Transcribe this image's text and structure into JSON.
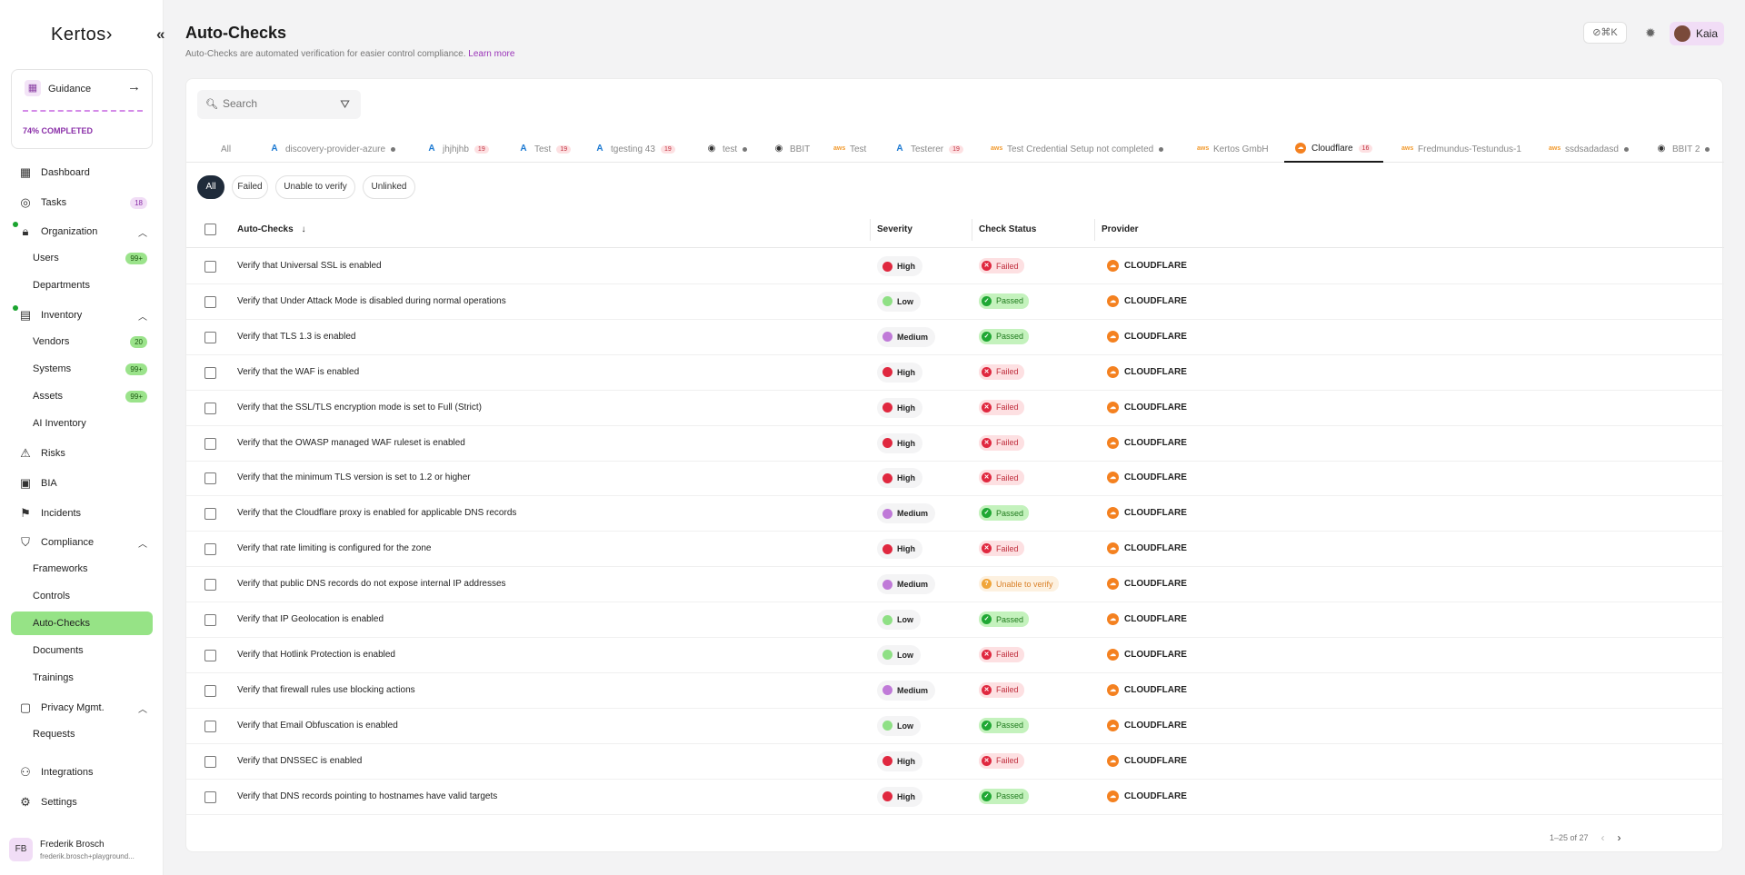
{
  "app": {
    "logo": "Kertos›",
    "collapse_icon": "«"
  },
  "guidance": {
    "title": "Guidance",
    "completed": "74% COMPLETED",
    "progress": 0.74
  },
  "nav": {
    "dashboard": "Dashboard",
    "tasks": "Tasks",
    "tasks_badge": "18",
    "organization": "Organization",
    "users": "Users",
    "users_badge": "99+",
    "departments": "Departments",
    "inventory": "Inventory",
    "vendors": "Vendors",
    "vendors_badge": "20",
    "systems": "Systems",
    "systems_badge": "99+",
    "assets": "Assets",
    "assets_badge": "99+",
    "ai_inventory": "AI Inventory",
    "risks": "Risks",
    "bia": "BIA",
    "incidents": "Incidents",
    "compliance": "Compliance",
    "frameworks": "Frameworks",
    "controls": "Controls",
    "auto_checks": "Auto-Checks",
    "documents": "Documents",
    "trainings": "Trainings",
    "privacy": "Privacy Mgmt.",
    "requests": "Requests",
    "integrations": "Integrations",
    "settings": "Settings"
  },
  "user": {
    "initials": "FB",
    "name": "Frederik Brosch",
    "email": "frederik.brosch+playground..."
  },
  "header": {
    "title": "Auto-Checks",
    "subtitle": "Auto-Checks are automated verification for easier control compliance.",
    "learn_more": "Learn more",
    "kbd": "⊘⌘K",
    "chip_name": "Kaia"
  },
  "search": {
    "placeholder": "Search"
  },
  "tabs": [
    {
      "label": "All"
    },
    {
      "label": "discovery-provider-azure"
    },
    {
      "label": "jhjhjhb",
      "badge": "19"
    },
    {
      "label": "Test",
      "badge": "19"
    },
    {
      "label": "tgesting 43",
      "badge": "19"
    },
    {
      "label": "test"
    },
    {
      "label": "BBIT"
    },
    {
      "label": "Test"
    },
    {
      "label": "Testerer",
      "badge": "19"
    },
    {
      "label": "Test Credential Setup not completed"
    },
    {
      "label": "Kertos GmbH"
    },
    {
      "label": "Cloudflare",
      "badge": "16"
    },
    {
      "label": "Fredmundus-Testundus-1"
    },
    {
      "label": "ssdsadadasd"
    },
    {
      "label": "BBIT 2"
    }
  ],
  "filters": [
    "All",
    "Failed",
    "Unable to verify",
    "Unlinked"
  ],
  "table": {
    "headers": {
      "check": "Auto-Checks",
      "severity": "Severity",
      "status": "Check Status",
      "provider": "Provider"
    },
    "rows": [
      {
        "name": "Verify that Universal SSL is enabled",
        "severity": "High",
        "status": "Failed",
        "provider": "CLOUDFLARE"
      },
      {
        "name": "Verify that Under Attack Mode is disabled during normal operations",
        "severity": "Low",
        "status": "Passed",
        "provider": "CLOUDFLARE"
      },
      {
        "name": "Verify that TLS 1.3 is enabled",
        "severity": "Medium",
        "status": "Passed",
        "provider": "CLOUDFLARE"
      },
      {
        "name": "Verify that the WAF is enabled",
        "severity": "High",
        "status": "Failed",
        "provider": "CLOUDFLARE"
      },
      {
        "name": "Verify that the SSL/TLS encryption mode is set to Full (Strict)",
        "severity": "High",
        "status": "Failed",
        "provider": "CLOUDFLARE"
      },
      {
        "name": "Verify that the OWASP managed WAF ruleset is enabled",
        "severity": "High",
        "status": "Failed",
        "provider": "CLOUDFLARE"
      },
      {
        "name": "Verify that the minimum TLS version is set to 1.2 or higher",
        "severity": "High",
        "status": "Failed",
        "provider": "CLOUDFLARE"
      },
      {
        "name": "Verify that the Cloudflare proxy is enabled for applicable DNS records",
        "severity": "Medium",
        "status": "Passed",
        "provider": "CLOUDFLARE"
      },
      {
        "name": "Verify that rate limiting is configured for the zone",
        "severity": "High",
        "status": "Failed",
        "provider": "CLOUDFLARE"
      },
      {
        "name": "Verify that public DNS records do not expose internal IP addresses",
        "severity": "Medium",
        "status": "Unable to verify",
        "provider": "CLOUDFLARE"
      },
      {
        "name": "Verify that IP Geolocation is enabled",
        "severity": "Low",
        "status": "Passed",
        "provider": "CLOUDFLARE"
      },
      {
        "name": "Verify that Hotlink Protection is enabled",
        "severity": "Low",
        "status": "Failed",
        "provider": "CLOUDFLARE"
      },
      {
        "name": "Verify that firewall rules use blocking actions",
        "severity": "Medium",
        "status": "Failed",
        "provider": "CLOUDFLARE"
      },
      {
        "name": "Verify that Email Obfuscation is enabled",
        "severity": "Low",
        "status": "Passed",
        "provider": "CLOUDFLARE"
      },
      {
        "name": "Verify that DNSSEC is enabled",
        "severity": "High",
        "status": "Failed",
        "provider": "CLOUDFLARE"
      },
      {
        "name": "Verify that DNS records pointing to hostnames have valid targets",
        "severity": "High",
        "status": "Passed",
        "provider": "CLOUDFLARE"
      }
    ]
  },
  "pagination": {
    "text": "1–25 of 27",
    "prev": "‹",
    "next": "›"
  },
  "colors": {
    "accent": "#96e386",
    "brand_purple": "#9a34b8",
    "high": "#e0283f",
    "low": "#8fe085",
    "medium": "#c07ad8"
  }
}
